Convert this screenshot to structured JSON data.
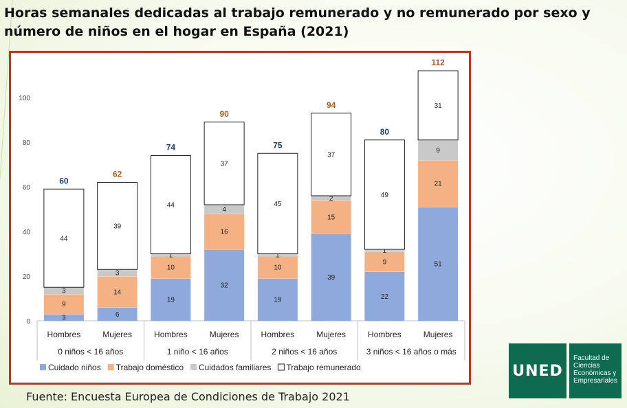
{
  "title": "Horas semanales dedicadas al trabajo remunerado y no remunerado por sexo y número de niños en el hogar en España (2021)",
  "source": "Fuente: Encuesta Europea de Condiciones de Trabajo 2021",
  "logo": {
    "text": "UNED",
    "faculty": "Facultad de Ciencias Económicas y Empresariales"
  },
  "colors": {
    "frame": "#b33a22",
    "total_men": "#1f3d7a",
    "total_women": "#b35a1f",
    "logo_green": "#0e6b50"
  },
  "chart_data": {
    "type": "bar",
    "stacked": true,
    "categories": [
      "Hombres",
      "Mujeres",
      "Hombres",
      "Mujeres",
      "Hombres",
      "Mujeres",
      "Hombres",
      "Mujeres"
    ],
    "groups": [
      "0 niños < 16 años",
      "1 niño < 16 años",
      "2 niños < 16 años",
      "3 niños < 16 años o más"
    ],
    "series": [
      {
        "name": "Cuidado niños",
        "color": "#8ea9db",
        "values": [
          3,
          6,
          19,
          32,
          19,
          39,
          22,
          51
        ]
      },
      {
        "name": "Trabajo doméstico",
        "color": "#f4b183",
        "values": [
          9,
          14,
          10,
          16,
          10,
          15,
          9,
          21
        ]
      },
      {
        "name": "Cuidados familiares",
        "color": "#c9c9c9",
        "values": [
          3,
          3,
          1,
          4,
          1,
          2,
          1,
          9
        ]
      },
      {
        "name": "Trabajo remunerado",
        "color": "#ffffff",
        "values": [
          44,
          39,
          44,
          37,
          45,
          37,
          49,
          31
        ]
      }
    ],
    "totals": [
      60,
      62,
      74,
      90,
      75,
      94,
      80,
      112
    ],
    "yticks": [
      "0",
      "20",
      "40",
      "60",
      "80",
      "100"
    ],
    "ylim": [
      0,
      112
    ],
    "legend_position": "bottom",
    "grid": false
  }
}
